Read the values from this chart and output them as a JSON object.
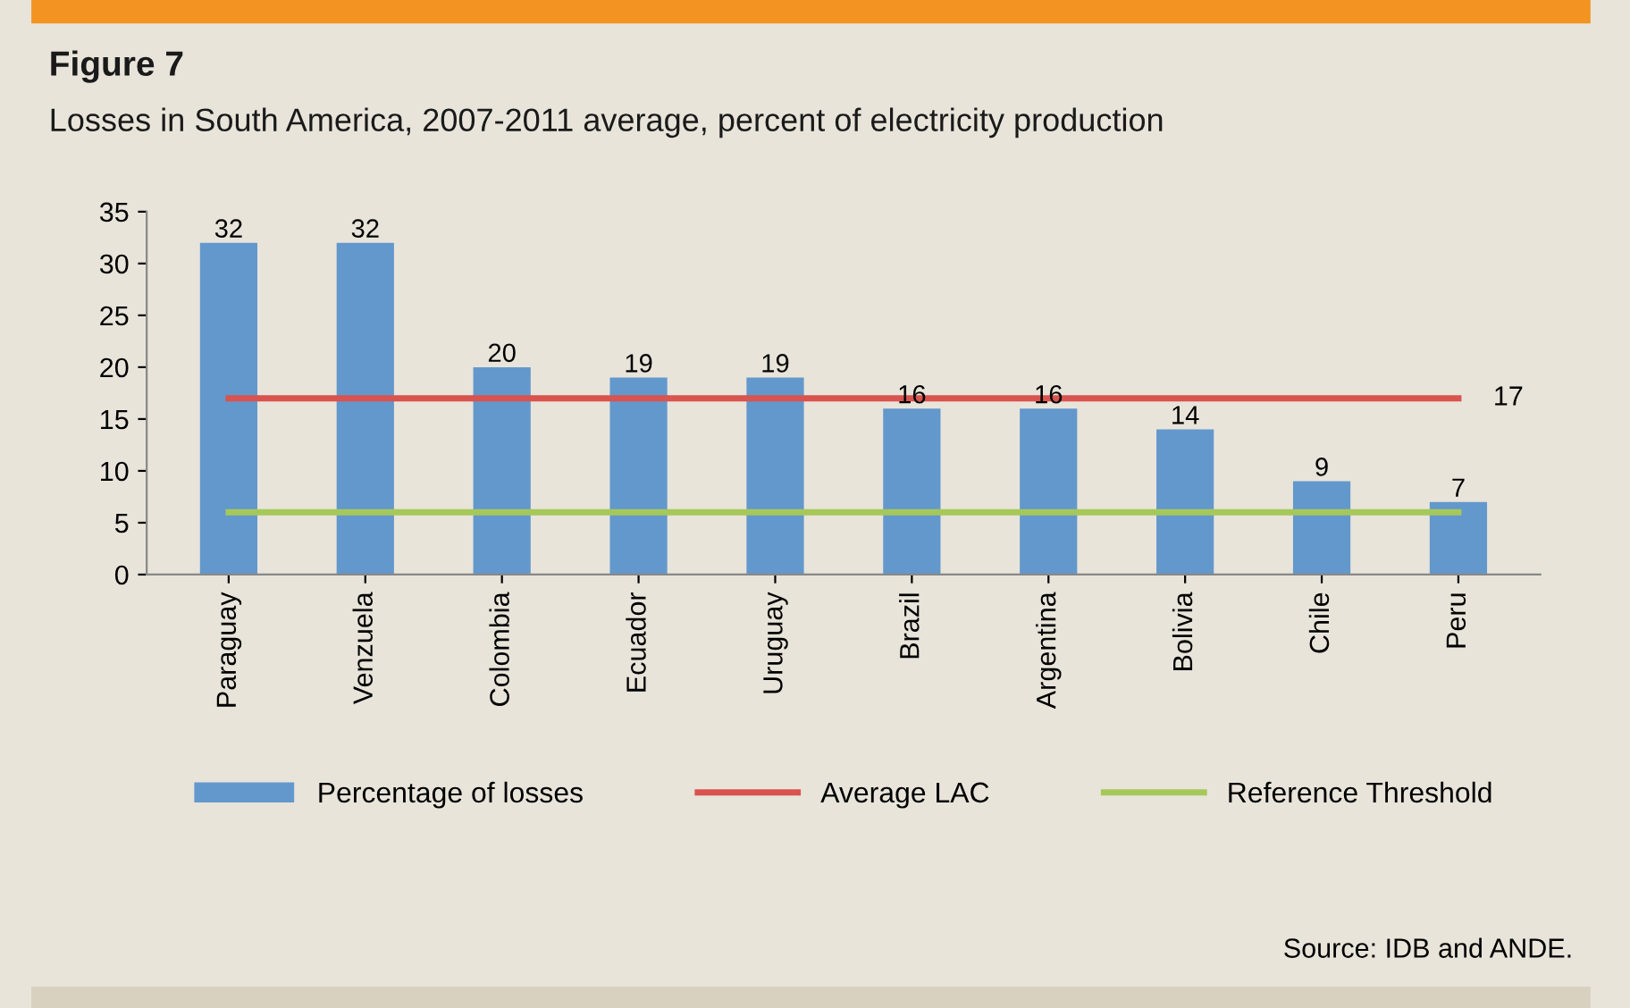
{
  "chart_data": {
    "type": "bar",
    "title": "Figure 7",
    "subtitle": "Losses in South America, 2007-2011 average, percent of electricity production",
    "categories": [
      "Paraguay",
      "Venzuela",
      "Colombia",
      "Ecuador",
      "Uruguay",
      "Brazil",
      "Argentina",
      "Bolivia",
      "Chile",
      "Peru"
    ],
    "series": [
      {
        "name": "Percentage of losses",
        "color": "#6398cc",
        "values": [
          32,
          32,
          20,
          19,
          19,
          16,
          16,
          14,
          9,
          7
        ],
        "value_labels": [
          "32",
          "32",
          "20",
          "19",
          "19",
          "16",
          "16",
          "14",
          "9",
          "7"
        ]
      },
      {
        "name": "Average LAC",
        "type": "line",
        "color": "#d9534f",
        "values": [
          17,
          17,
          17,
          17,
          17,
          17,
          17,
          17,
          17,
          17
        ],
        "value_labels": [
          null,
          null,
          null,
          null,
          null,
          null,
          null,
          null,
          null,
          "17"
        ]
      },
      {
        "name": "Reference Threshold",
        "type": "line",
        "color": "#a6c85a",
        "values": [
          6,
          6,
          6,
          6,
          6,
          6,
          6,
          6,
          6,
          6
        ]
      }
    ],
    "ylim": [
      0,
      35
    ],
    "yticks": [
      0,
      5,
      10,
      15,
      20,
      25,
      30,
      35
    ],
    "grid": false,
    "legend": "bottom",
    "annotations": [
      "Source: IDB and ANDE."
    ]
  }
}
